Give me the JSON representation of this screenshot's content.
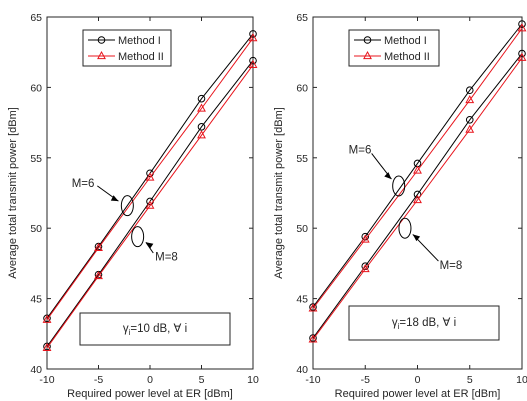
{
  "chart_data": [
    {
      "type": "line",
      "xlabel": "Required power level at ER [dBm]",
      "ylabel": "Average total transmit power [dBm]",
      "xlim": [
        -10,
        10
      ],
      "ylim": [
        40,
        65
      ],
      "xticks": [
        -10,
        -5,
        0,
        5,
        10
      ],
      "yticks": [
        40,
        45,
        50,
        55,
        60,
        65
      ],
      "legend_position": "top",
      "series": [
        {
          "name": "Method I",
          "group": "M=6",
          "marker": "circle",
          "color": "#000000",
          "x": [
            -10,
            -5,
            0,
            5,
            10
          ],
          "y": [
            43.6,
            48.7,
            53.9,
            59.2,
            63.8
          ]
        },
        {
          "name": "Method II",
          "group": "M=6",
          "marker": "triangle",
          "color": "#e8141c",
          "x": [
            -10,
            -5,
            0,
            5,
            10
          ],
          "y": [
            43.5,
            48.6,
            53.6,
            58.5,
            63.5
          ]
        },
        {
          "name": "Method I",
          "group": "M=8",
          "marker": "circle",
          "color": "#000000",
          "x": [
            -10,
            -5,
            0,
            5,
            10
          ],
          "y": [
            41.6,
            46.7,
            51.9,
            57.2,
            61.9
          ]
        },
        {
          "name": "Method II",
          "group": "M=8",
          "marker": "triangle",
          "color": "#e8141c",
          "x": [
            -10,
            -5,
            0,
            5,
            10
          ],
          "y": [
            41.5,
            46.6,
            51.6,
            56.6,
            61.6
          ]
        }
      ],
      "annotations": [
        {
          "label": "M=6",
          "label_x": -6.5,
          "label_y": 53.2,
          "target_x": -2.2,
          "target_y": 51.6
        },
        {
          "label": "M=8",
          "label_x": 1.6,
          "label_y": 48.0,
          "target_x": -1.2,
          "target_y": 49.4
        }
      ],
      "condition": {
        "gamma": "γ",
        "subscript": "i",
        "rest": "=10 dB, ∀ i"
      }
    },
    {
      "type": "line",
      "xlabel": "Required power level at ER [dBm]",
      "ylabel": "Average total transmit power [dBm]",
      "xlim": [
        -10,
        10
      ],
      "ylim": [
        40,
        65
      ],
      "xticks": [
        -10,
        -5,
        0,
        5,
        10
      ],
      "yticks": [
        40,
        45,
        50,
        55,
        60,
        65
      ],
      "legend_position": "top",
      "series": [
        {
          "name": "Method I",
          "group": "M=6",
          "marker": "circle",
          "color": "#000000",
          "x": [
            -10,
            -5,
            0,
            5,
            10
          ],
          "y": [
            44.4,
            49.4,
            54.6,
            59.8,
            64.5
          ]
        },
        {
          "name": "Method II",
          "group": "M=6",
          "marker": "triangle",
          "color": "#e8141c",
          "x": [
            -10,
            -5,
            0,
            5,
            10
          ],
          "y": [
            44.3,
            49.2,
            54.1,
            59.1,
            64.2
          ]
        },
        {
          "name": "Method I",
          "group": "M=8",
          "marker": "circle",
          "color": "#000000",
          "x": [
            -10,
            -5,
            0,
            5,
            10
          ],
          "y": [
            42.2,
            47.3,
            52.4,
            57.7,
            62.4
          ]
        },
        {
          "name": "Method II",
          "group": "M=8",
          "marker": "triangle",
          "color": "#e8141c",
          "x": [
            -10,
            -5,
            0,
            5,
            10
          ],
          "y": [
            42.1,
            47.1,
            52.0,
            57.0,
            62.1
          ]
        }
      ],
      "annotations": [
        {
          "label": "M=6",
          "label_x": -5.5,
          "label_y": 55.6,
          "target_x": -1.8,
          "target_y": 53.0
        },
        {
          "label": "M=8",
          "label_x": 3.2,
          "label_y": 47.4,
          "target_x": -1.2,
          "target_y": 50.0
        }
      ],
      "condition": {
        "gamma": "γ",
        "subscript": "i",
        "rest": "=18 dB, ∀ i"
      }
    }
  ]
}
